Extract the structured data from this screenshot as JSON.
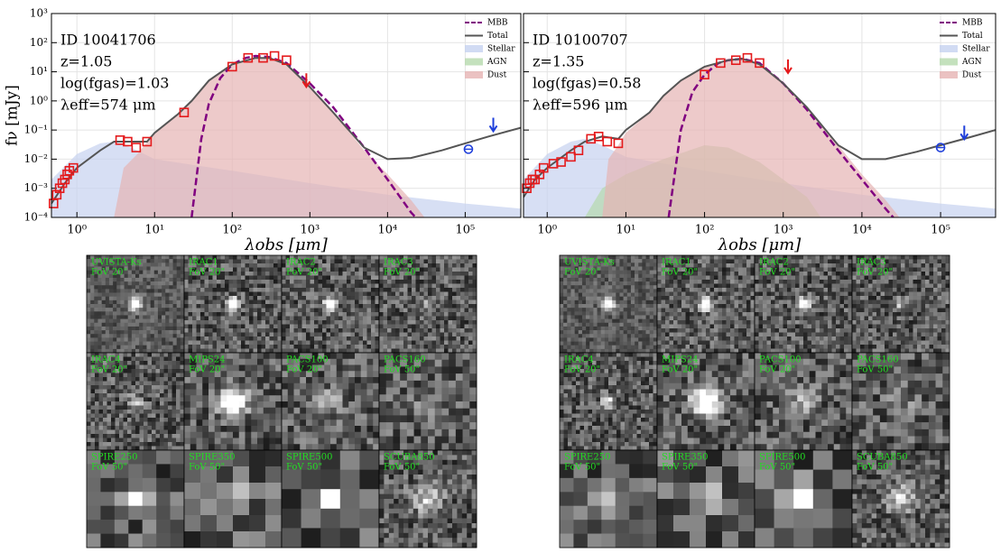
{
  "chart_data": [
    {
      "type": "line",
      "xscale": "log",
      "yscale": "log",
      "xlabel": "λobs [μm]",
      "ylabel": "fν [mJy]",
      "annotations": [
        "ID 10041706",
        "z=1.05",
        "log(fgas)=1.03",
        "λeff=574 μm"
      ],
      "xlim": [
        0.47,
        520000
      ],
      "ylim": [
        0.0001,
        1000
      ],
      "xticks": [
        {
          "value": 1,
          "label": "10⁰"
        },
        {
          "value": 10,
          "label": "10¹"
        },
        {
          "value": 100,
          "label": "10²"
        },
        {
          "value": 1000,
          "label": "10³"
        },
        {
          "value": 10000,
          "label": "10⁴"
        },
        {
          "value": 100000,
          "label": "10⁵"
        }
      ],
      "yticks": [
        {
          "value": 0.0001,
          "label": "10⁻⁴"
        },
        {
          "value": 0.001,
          "label": "10⁻³"
        },
        {
          "value": 0.01,
          "label": "10⁻²"
        },
        {
          "value": 0.1,
          "label": "10⁻¹"
        },
        {
          "value": 1,
          "label": "10⁰"
        },
        {
          "value": 10,
          "label": "10¹"
        },
        {
          "value": 100,
          "label": "10²"
        },
        {
          "value": 1000,
          "label": "10³"
        }
      ],
      "ytick_labels": true,
      "grid": true,
      "legend": "upper right",
      "series": [
        {
          "name": "MBB",
          "color": "#800080",
          "style": "dashed",
          "x": [
            30,
            40,
            50,
            70,
            100,
            150,
            200,
            300,
            500,
            1000,
            2000,
            5000,
            10000,
            20000,
            23000
          ],
          "values": [
            0.0001,
            0.05,
            0.8,
            6,
            18,
            30,
            35,
            32,
            20,
            4,
            0.6,
            0.025,
            0.002,
            0.00015,
            0.0001
          ]
        },
        {
          "name": "Total",
          "color": "#555555",
          "style": "solid",
          "x": [
            0.47,
            0.7,
            1,
            2,
            3,
            5,
            8,
            10,
            20,
            30,
            50,
            100,
            200,
            300,
            500,
            1000,
            2000,
            5000,
            10000,
            20000,
            50000,
            100000,
            200000,
            520000
          ],
          "values": [
            0.0003,
            0.0015,
            0.005,
            0.02,
            0.04,
            0.04,
            0.04,
            0.08,
            0.35,
            1,
            5,
            18,
            30,
            30,
            18,
            3,
            0.4,
            0.025,
            0.01,
            0.011,
            0.02,
            0.035,
            0.06,
            0.12
          ]
        },
        {
          "name": "Stellar",
          "color": "#c6d2f0",
          "style": "fill",
          "x": [
            0.47,
            1,
            2,
            3,
            5,
            10,
            100,
            1000,
            10000,
            100000,
            520000
          ],
          "values": [
            0.002,
            0.015,
            0.035,
            0.04,
            0.025,
            0.01,
            0.004,
            0.0015,
            0.0006,
            0.0003,
            0.0002
          ]
        },
        {
          "name": "AGN",
          "color": "#b5d9ad",
          "style": "fill",
          "x": [],
          "values": []
        },
        {
          "name": "Dust",
          "color": "#e6b3b3",
          "style": "fill",
          "x": [
            3,
            4,
            6,
            10,
            20,
            30,
            50,
            100,
            200,
            300,
            500,
            1000,
            2000,
            5000,
            10000,
            20000,
            30000
          ],
          "values": [
            0.0001,
            0.005,
            0.015,
            0.08,
            0.35,
            1,
            5,
            18,
            30,
            30,
            18,
            3,
            0.4,
            0.02,
            0.003,
            0.0004,
            0.0001
          ]
        }
      ],
      "photometry": {
        "color": "#e41a1c",
        "x": [
          0.5,
          0.55,
          0.6,
          0.65,
          0.7,
          0.75,
          0.8,
          0.9,
          3.6,
          4.5,
          5.8,
          8,
          24,
          100,
          160,
          250,
          350,
          500
        ],
        "values": [
          0.0003,
          0.0006,
          0.001,
          0.0015,
          0.002,
          0.003,
          0.004,
          0.005,
          0.045,
          0.04,
          0.025,
          0.04,
          0.4,
          15,
          30,
          30,
          35,
          25
        ]
      },
      "upper_limits": {
        "color": "#e41a1c",
        "x": [
          900
        ],
        "values": [
          5
        ]
      },
      "radio": {
        "color": "#1f3fdb",
        "x": [
          110000
        ],
        "values": [
          0.022
        ]
      },
      "radio_limits": {
        "color": "#1f3fdb",
        "x": [
          230000
        ],
        "values": [
          0.15
        ]
      }
    },
    {
      "type": "line",
      "xscale": "log",
      "yscale": "log",
      "xlabel": "λobs [μm]",
      "annotations": [
        "ID 10100707",
        "z=1.35",
        "log(fgas)=0.58",
        "λeff=596 μm"
      ],
      "xlim": [
        0.5,
        500000
      ],
      "ylim": [
        0.0001,
        1000
      ],
      "xticks": [
        {
          "value": 1,
          "label": "10⁰"
        },
        {
          "value": 10,
          "label": "10¹"
        },
        {
          "value": 100,
          "label": "10²"
        },
        {
          "value": 1000,
          "label": "10³"
        },
        {
          "value": 10000,
          "label": "10⁴"
        },
        {
          "value": 100000,
          "label": "10⁵"
        }
      ],
      "yticks": [
        {
          "value": 0.0001,
          "label": "10⁻⁴"
        },
        {
          "value": 0.001,
          "label": "10⁻³"
        },
        {
          "value": 0.01,
          "label": "10⁻²"
        },
        {
          "value": 0.1,
          "label": "10⁻¹"
        },
        {
          "value": 1,
          "label": "10⁰"
        },
        {
          "value": 10,
          "label": "10¹"
        },
        {
          "value": 100,
          "label": "10²"
        },
        {
          "value": 1000,
          "label": "10³"
        }
      ],
      "ytick_labels": false,
      "grid": true,
      "legend": "upper right",
      "series": [
        {
          "name": "MBB",
          "color": "#800080",
          "style": "dashed",
          "x": [
            35,
            50,
            70,
            100,
            150,
            200,
            300,
            500,
            1000,
            2000,
            5000,
            10000,
            20000,
            25000
          ],
          "values": [
            0.0001,
            0.1,
            2,
            8,
            20,
            25,
            28,
            20,
            4,
            0.5,
            0.02,
            0.002,
            0.0002,
            0.0001
          ]
        },
        {
          "name": "Total",
          "color": "#555555",
          "style": "solid",
          "x": [
            0.5,
            0.7,
            1,
            2,
            3,
            5,
            8,
            10,
            20,
            30,
            50,
            100,
            200,
            300,
            500,
            1000,
            2000,
            5000,
            10000,
            20000,
            50000,
            100000,
            200000,
            500000
          ],
          "values": [
            0.0005,
            0.002,
            0.005,
            0.02,
            0.04,
            0.06,
            0.05,
            0.1,
            0.4,
            1.5,
            5,
            15,
            25,
            28,
            18,
            4,
            0.6,
            0.03,
            0.01,
            0.01,
            0.018,
            0.03,
            0.05,
            0.1
          ]
        },
        {
          "name": "Stellar",
          "color": "#c6d2f0",
          "style": "fill",
          "x": [
            0.5,
            1,
            2,
            3,
            5,
            10,
            100,
            1000,
            10000,
            100000,
            500000
          ],
          "values": [
            0.002,
            0.015,
            0.04,
            0.05,
            0.03,
            0.012,
            0.004,
            0.0015,
            0.0006,
            0.0003,
            0.0002
          ]
        },
        {
          "name": "AGN",
          "color": "#b5d9ad",
          "style": "fill",
          "x": [
            3,
            5,
            10,
            30,
            100,
            200,
            500,
            1000,
            2000,
            3000
          ],
          "values": [
            0.0001,
            0.001,
            0.003,
            0.01,
            0.03,
            0.025,
            0.008,
            0.002,
            0.0005,
            0.0001
          ]
        },
        {
          "name": "Dust",
          "color": "#e6b3b3",
          "style": "fill",
          "x": [
            5,
            6,
            8,
            10,
            20,
            30,
            50,
            100,
            200,
            300,
            500,
            1000,
            2000,
            5000,
            10000,
            20000,
            30000
          ],
          "values": [
            0.0001,
            0.01,
            0.03,
            0.08,
            0.4,
            1.5,
            5,
            15,
            25,
            28,
            18,
            4,
            0.6,
            0.03,
            0.003,
            0.0004,
            0.0001
          ]
        }
      ],
      "photometry": {
        "color": "#e41a1c",
        "x": [
          0.55,
          0.6,
          0.65,
          0.7,
          0.8,
          0.9,
          1.2,
          1.5,
          2,
          2.5,
          3.6,
          4.5,
          5.8,
          8,
          100,
          160,
          250,
          350,
          500
        ],
        "values": [
          0.001,
          0.0015,
          0.002,
          0.002,
          0.003,
          0.005,
          0.007,
          0.008,
          0.012,
          0.02,
          0.05,
          0.06,
          0.04,
          0.035,
          8,
          20,
          25,
          30,
          20
        ]
      },
      "upper_limits": {
        "color": "#e41a1c",
        "x": [
          1150
        ],
        "values": [
          15
        ]
      },
      "radio": {
        "color": "#1f3fdb",
        "x": [
          100000
        ],
        "values": [
          0.025
        ]
      },
      "radio_limits": {
        "color": "#1f3fdb",
        "x": [
          200000
        ],
        "values": [
          0.08
        ]
      }
    }
  ],
  "stamps": [
    [
      {
        "band": "UVISTA-Ks",
        "fov": "FoV 20\""
      },
      {
        "band": "IRAC1",
        "fov": "FoV 20\""
      },
      {
        "band": "IRAC2",
        "fov": "FoV 20\""
      },
      {
        "band": "IRAC3",
        "fov": "FoV 20\""
      },
      {
        "band": "IRAC4",
        "fov": "FoV 20\""
      },
      {
        "band": "MIPS24",
        "fov": "FoV 20\""
      },
      {
        "band": "PACS100",
        "fov": "FoV 20\""
      },
      {
        "band": "PACS160",
        "fov": "FoV 50\""
      },
      {
        "band": "SPIRE250",
        "fov": "FoV 50\""
      },
      {
        "band": "SPIRE350",
        "fov": "FoV 50\""
      },
      {
        "band": "SPIRE500",
        "fov": "FoV 50\""
      },
      {
        "band": "SCUBA850",
        "fov": "FoV 50\""
      }
    ],
    [
      {
        "band": "UVISTA-Ks",
        "fov": "FoV 20\""
      },
      {
        "band": "IRAC1",
        "fov": "FoV 20\""
      },
      {
        "band": "IRAC2",
        "fov": "FoV 20\""
      },
      {
        "band": "IRAC3",
        "fov": "FoV 20\""
      },
      {
        "band": "IRAC4",
        "fov": "FoV 20\""
      },
      {
        "band": "MIPS24",
        "fov": "FoV 20\""
      },
      {
        "band": "PACS100",
        "fov": "FoV 20\""
      },
      {
        "band": "PACS160",
        "fov": "FoV 50\""
      },
      {
        "band": "SPIRE250",
        "fov": "FoV 50\""
      },
      {
        "band": "SPIRE350",
        "fov": "FoV 50\""
      },
      {
        "band": "SPIRE500",
        "fov": "FoV 50\""
      },
      {
        "band": "SCUBA850",
        "fov": "FoV 50\""
      }
    ]
  ]
}
